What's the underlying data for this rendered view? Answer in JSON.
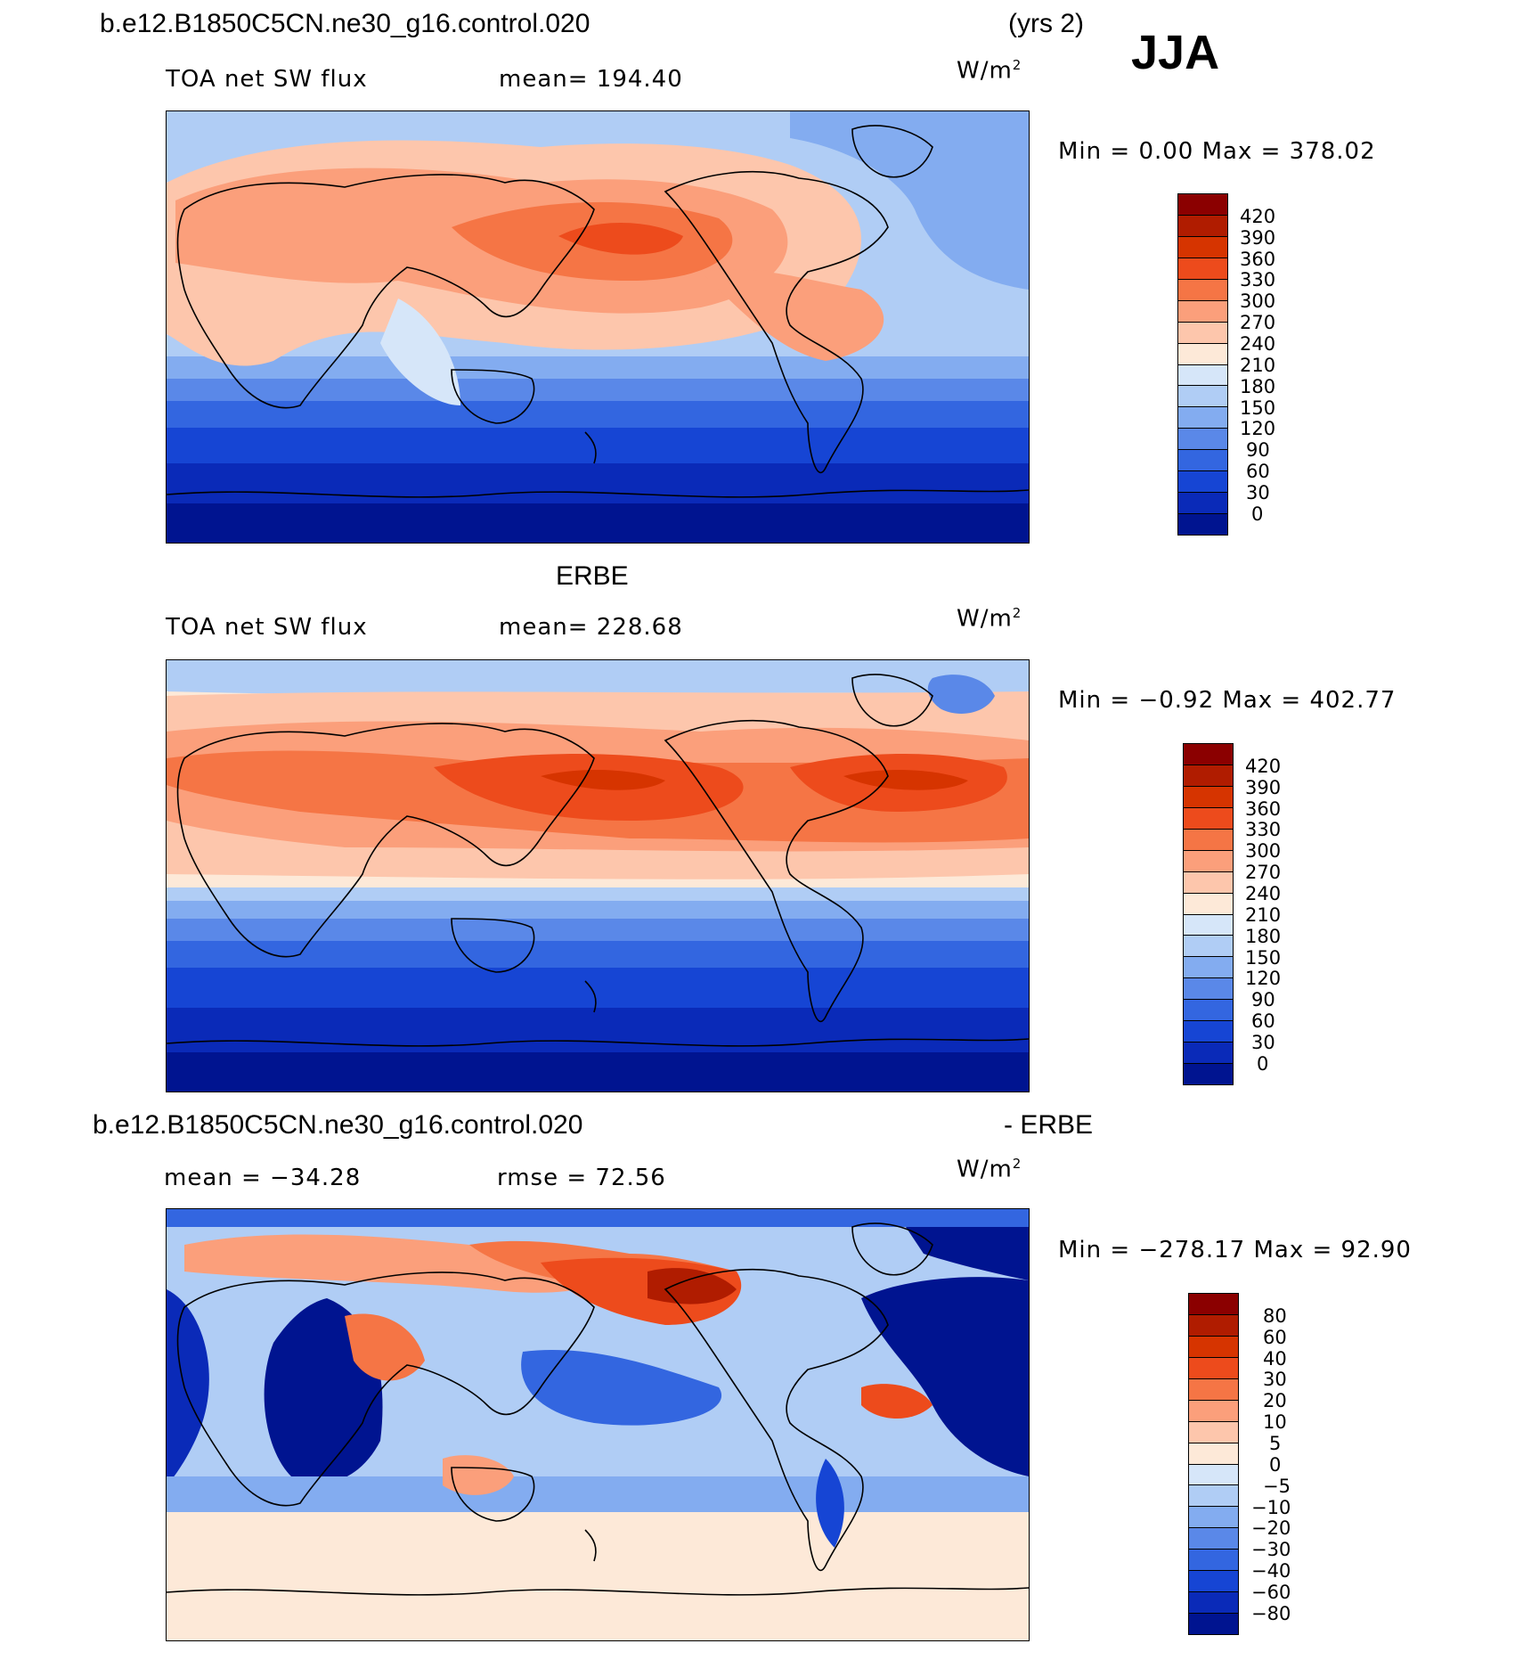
{
  "header": {
    "case_name": "b.e12.B1850C5CN.ne30_g16.control.020",
    "years": "(yrs 2)",
    "season": "JJA"
  },
  "panels": [
    {
      "title": "",
      "left": "TOA net SW flux",
      "mid": "mean= 194.40",
      "units": "W/m",
      "units_sup": "2",
      "minmax": "Min =    0.00 Max = 378.02",
      "labels": [
        "420",
        "390",
        "360",
        "330",
        "300",
        "270",
        "240",
        "210",
        "180",
        "150",
        "120",
        "90",
        "60",
        "30",
        "0"
      ],
      "colors": [
        "#8b0000",
        "#b01c00",
        "#d63400",
        "#ed4b1c",
        "#f57545",
        "#fb9f7b",
        "#fdc6ac",
        "#fde9d8",
        "#d6e6f9",
        "#b0cdf5",
        "#83acf0",
        "#5a88e8",
        "#3366e0",
        "#1645d4",
        "#0a2ab8",
        "#001490"
      ]
    },
    {
      "title": "ERBE",
      "left": "TOA net SW flux",
      "mid": "mean= 228.68",
      "units": "W/m",
      "units_sup": "2",
      "minmax": "Min =  −0.92 Max = 402.77",
      "labels": [
        "420",
        "390",
        "360",
        "330",
        "300",
        "270",
        "240",
        "210",
        "180",
        "150",
        "120",
        "90",
        "60",
        "30",
        "0"
      ],
      "colors": [
        "#8b0000",
        "#b01c00",
        "#d63400",
        "#ed4b1c",
        "#f57545",
        "#fb9f7b",
        "#fdc6ac",
        "#fde9d8",
        "#d6e6f9",
        "#b0cdf5",
        "#83acf0",
        "#5a88e8",
        "#3366e0",
        "#1645d4",
        "#0a2ab8",
        "#001490"
      ]
    },
    {
      "title_left": "b.e12.B1850C5CN.ne30_g16.control.020",
      "title_right": "- ERBE",
      "left": "mean = −34.28",
      "mid": "rmse =  72.56",
      "units": "W/m",
      "units_sup": "2",
      "minmax": "Min = −278.17 Max =  92.90",
      "labels": [
        "80",
        "60",
        "40",
        "30",
        "20",
        "10",
        "5",
        "0",
        "−5",
        "−10",
        "−20",
        "−30",
        "−40",
        "−60",
        "−80"
      ],
      "colors": [
        "#8b0000",
        "#b01c00",
        "#d63400",
        "#ed4b1c",
        "#f57545",
        "#fb9f7b",
        "#fdc6ac",
        "#fde9d8",
        "#d6e6f9",
        "#b0cdf5",
        "#83acf0",
        "#5a88e8",
        "#3366e0",
        "#1645d4",
        "#0a2ab8",
        "#001490"
      ]
    }
  ]
}
